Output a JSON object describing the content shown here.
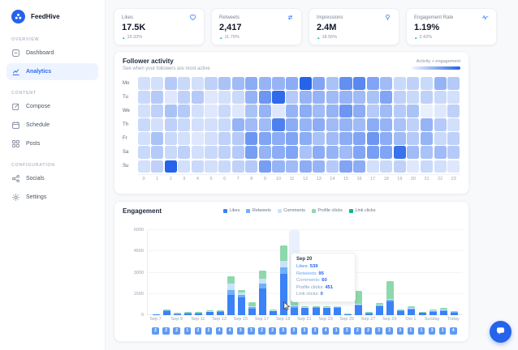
{
  "app": {
    "name": "FeedHive",
    "brand_color": "#2563eb"
  },
  "sidebar": {
    "logo_icon": "feedhive-logo",
    "sections": [
      {
        "label": "OVERVIEW",
        "items": [
          {
            "label": "Dashboard",
            "icon": "dashboard-icon",
            "active": false
          },
          {
            "label": "Analytics",
            "icon": "analytics-icon",
            "active": true
          }
        ]
      },
      {
        "label": "CONTENT",
        "items": [
          {
            "label": "Compose",
            "icon": "compose-icon",
            "active": false
          },
          {
            "label": "Schedule",
            "icon": "schedule-icon",
            "active": false
          },
          {
            "label": "Posts",
            "icon": "posts-icon",
            "active": false
          }
        ]
      },
      {
        "label": "CONFIGURATION",
        "items": [
          {
            "label": "Socials",
            "icon": "socials-icon",
            "active": false
          },
          {
            "label": "Settings",
            "icon": "settings-icon",
            "active": false
          }
        ]
      }
    ]
  },
  "stat_cards": [
    {
      "label": "Likes",
      "value": "17.5K",
      "change": "15.33%",
      "trend": "up",
      "icon": "heart-icon"
    },
    {
      "label": "Retweets",
      "value": "2,417",
      "change": "11.79%",
      "trend": "up",
      "icon": "retweet-icon"
    },
    {
      "label": "Impressions",
      "value": "2.4M",
      "change": "18.55%",
      "trend": "up",
      "icon": "lightbulb-icon"
    },
    {
      "label": "Engagement Rate",
      "value": "1.19%",
      "change": "2.42%",
      "trend": "up",
      "icon": "pulse-icon"
    }
  ],
  "chat_button_icon": "chat-icon",
  "chart_data": [
    {
      "type": "heatmap",
      "title": "Follower activity",
      "subtitle": "See when your followers are most active",
      "legend_label": "Activity + engagement",
      "rows": [
        "Mo",
        "Tu",
        "We",
        "Th",
        "Fr",
        "Sa",
        "Su"
      ],
      "columns": [
        0,
        1,
        2,
        3,
        4,
        5,
        6,
        7,
        8,
        9,
        10,
        11,
        12,
        13,
        14,
        15,
        16,
        17,
        18,
        19,
        20,
        21,
        22,
        23
      ],
      "color_scale": {
        "min": "#f2f6fe",
        "max": "#2563eb"
      },
      "values": [
        [
          0.15,
          0.15,
          0.3,
          0.2,
          0.15,
          0.25,
          0.35,
          0.4,
          0.5,
          0.45,
          0.45,
          0.5,
          1.0,
          0.55,
          0.35,
          0.7,
          0.75,
          0.55,
          0.4,
          0.2,
          0.25,
          0.2,
          0.45,
          0.3
        ],
        [
          0.2,
          0.3,
          0.1,
          0.25,
          0.3,
          0.1,
          0.15,
          0.2,
          0.45,
          0.65,
          0.95,
          0.3,
          0.45,
          0.45,
          0.4,
          0.45,
          0.4,
          0.35,
          0.55,
          0.25,
          0.2,
          0.25,
          0.2,
          0.15
        ],
        [
          0.15,
          0.25,
          0.35,
          0.3,
          0.15,
          0.1,
          0.2,
          0.1,
          0.35,
          0.45,
          0.1,
          0.45,
          0.5,
          0.4,
          0.45,
          0.65,
          0.5,
          0.3,
          0.4,
          0.3,
          0.35,
          0.05,
          0.1,
          0.25
        ],
        [
          0.2,
          0.15,
          0.25,
          0.2,
          0.15,
          0.15,
          0.2,
          0.45,
          0.4,
          0.4,
          0.8,
          0.5,
          0.45,
          0.5,
          0.4,
          0.45,
          0.4,
          0.5,
          0.45,
          0.35,
          0.25,
          0.45,
          0.3,
          0.15
        ],
        [
          0.15,
          0.35,
          0.2,
          0.15,
          0.1,
          0.15,
          0.25,
          0.3,
          0.65,
          0.55,
          0.5,
          0.55,
          0.5,
          0.35,
          0.4,
          0.5,
          0.55,
          0.65,
          0.5,
          0.4,
          0.3,
          0.45,
          0.2,
          0.25
        ],
        [
          0.2,
          0.3,
          0.2,
          0.25,
          0.15,
          0.2,
          0.25,
          0.3,
          0.6,
          0.45,
          0.5,
          0.55,
          0.35,
          0.5,
          0.45,
          0.4,
          0.55,
          0.6,
          0.55,
          0.9,
          0.4,
          0.35,
          0.4,
          0.3
        ],
        [
          0.15,
          0.25,
          1.0,
          0.15,
          0.2,
          0.15,
          0.2,
          0.25,
          0.3,
          0.6,
          0.45,
          0.4,
          0.5,
          0.45,
          0.3,
          0.55,
          0.5,
          0.15,
          0.2,
          0.25,
          0.1,
          0.2,
          0.15,
          0.1
        ]
      ]
    },
    {
      "type": "bar",
      "stacked": true,
      "title": "Engagement",
      "ylim": [
        0,
        6000
      ],
      "y_ticks": [
        0,
        1500,
        3000,
        4500,
        6000
      ],
      "x_tick_labels": [
        "Sep 7",
        "Sep 9",
        "Sep 11",
        "Sep 13",
        "Sep 15",
        "Sep 17",
        "Sep 19",
        "Sep 21",
        "Sep 23",
        "Sep 25",
        "Sep 27",
        "Sep 29",
        "Oct 1",
        "Sunday",
        "Today"
      ],
      "highlighted_index": 13,
      "series": [
        {
          "name": "Likes",
          "color": "#3b82f6",
          "values": [
            30,
            270,
            80,
            120,
            120,
            210,
            220,
            1450,
            1250,
            480,
            1900,
            260,
            2900,
            539,
            490,
            500,
            490,
            510,
            55,
            700,
            110,
            640,
            1000,
            280,
            420,
            150,
            250,
            290,
            180
          ]
        },
        {
          "name": "Retweets",
          "color": "#6fb0f9",
          "values": [
            0,
            15,
            5,
            10,
            10,
            10,
            15,
            350,
            190,
            95,
            340,
            15,
            460,
            95,
            15,
            15,
            15,
            15,
            0,
            20,
            5,
            20,
            90,
            10,
            15,
            5,
            10,
            10,
            5
          ]
        },
        {
          "name": "Comments",
          "color": "#c9e2fb",
          "values": [
            0,
            10,
            0,
            0,
            0,
            10,
            10,
            420,
            160,
            65,
            320,
            10,
            480,
            60,
            5,
            5,
            5,
            5,
            0,
            10,
            0,
            10,
            50,
            5,
            5,
            0,
            5,
            5,
            0
          ]
        },
        {
          "name": "Profile clicks",
          "color": "#8ed8ab",
          "values": [
            0,
            15,
            5,
            10,
            10,
            10,
            15,
            500,
            200,
            250,
            600,
            15,
            1050,
            451,
            10,
            10,
            10,
            10,
            5,
            900,
            5,
            130,
            1280,
            35,
            100,
            5,
            55,
            115,
            45
          ]
        },
        {
          "name": "Link clicks",
          "color": "#10b981",
          "values": [
            0,
            0,
            0,
            0,
            0,
            0,
            0,
            0,
            0,
            0,
            0,
            0,
            0,
            0,
            0,
            0,
            0,
            0,
            0,
            0,
            0,
            0,
            0,
            0,
            0,
            0,
            0,
            0,
            0
          ]
        }
      ],
      "tooltip": {
        "title": "Sep 20",
        "rows": [
          {
            "label": "Likes",
            "value": "539",
            "color": "#3b82f6"
          },
          {
            "label": "Retweets",
            "value": "95",
            "color": "#60a5fa"
          },
          {
            "label": "Comments",
            "value": "60",
            "color": "#7ea8d8"
          },
          {
            "label": "Profile clicks",
            "value": "451",
            "color": "#7d9bbf"
          },
          {
            "label": "Link clicks",
            "value": "0",
            "color": "#8aa3bd"
          }
        ]
      },
      "post_counts": [
        2,
        2,
        2,
        1,
        2,
        2,
        4,
        4,
        3,
        3,
        2,
        2,
        3,
        3,
        3,
        3,
        4,
        1,
        3,
        2,
        2,
        3,
        2,
        3,
        1,
        1,
        3,
        1,
        4
      ]
    }
  ]
}
